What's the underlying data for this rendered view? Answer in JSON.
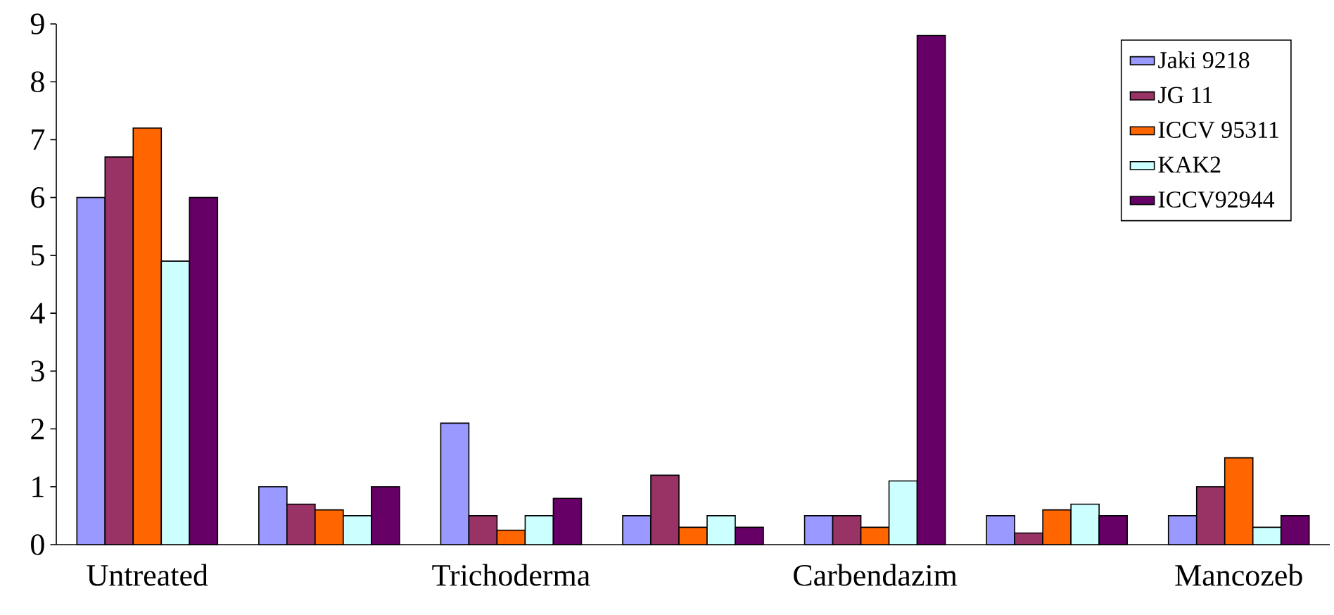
{
  "chart_data": {
    "type": "bar",
    "categories": [
      "Untreated",
      null,
      "Trichoderma",
      null,
      "Carbendazim",
      null,
      "Mancozeb"
    ],
    "series": [
      {
        "name": "Jaki 9218",
        "color": "#9999ff",
        "values": [
          6,
          1,
          2.1,
          0.5,
          0.5,
          0.5,
          0.5
        ]
      },
      {
        "name": "JG 11",
        "color": "#993366",
        "values": [
          6.7,
          0.7,
          0.5,
          1.2,
          0.5,
          0.2,
          1.0
        ]
      },
      {
        "name": "ICCV 95311",
        "color": "#ff6600",
        "values": [
          7.2,
          0.6,
          0.25,
          0.3,
          0.3,
          0.6,
          1.5
        ]
      },
      {
        "name": "KAK2",
        "color": "#ccffff",
        "values": [
          4.9,
          0.5,
          0.5,
          0.5,
          1.1,
          0.7,
          0.3
        ]
      },
      {
        "name": "ICCV92944",
        "color": "#660066",
        "values": [
          6,
          1,
          0.8,
          0.3,
          8.8,
          0.5,
          0.5
        ]
      }
    ],
    "ylim": [
      0,
      9
    ],
    "yticks": [
      0,
      1,
      2,
      3,
      4,
      5,
      6,
      7,
      8,
      9
    ],
    "grid": false,
    "legend": "top right"
  }
}
